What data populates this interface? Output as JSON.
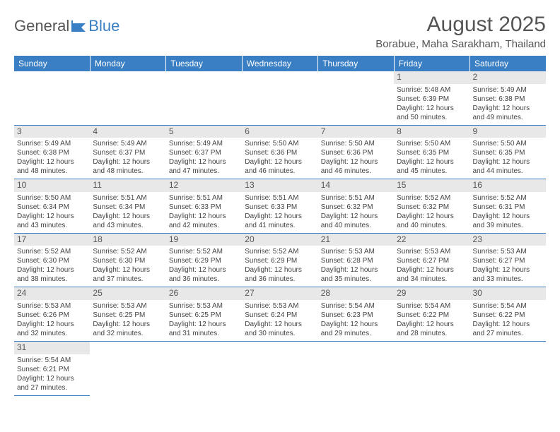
{
  "logo": {
    "text1": "General",
    "text2": "Blue"
  },
  "title": "August 2025",
  "location": "Borabue, Maha Sarakham, Thailand",
  "weekdays": [
    "Sunday",
    "Monday",
    "Tuesday",
    "Wednesday",
    "Thursday",
    "Friday",
    "Saturday"
  ],
  "header_bg": "#3a7fc4",
  "grid": [
    [
      null,
      null,
      null,
      null,
      null,
      {
        "n": "1",
        "sr": "Sunrise: 5:48 AM",
        "ss": "Sunset: 6:39 PM",
        "d1": "Daylight: 12 hours",
        "d2": "and 50 minutes."
      },
      {
        "n": "2",
        "sr": "Sunrise: 5:49 AM",
        "ss": "Sunset: 6:38 PM",
        "d1": "Daylight: 12 hours",
        "d2": "and 49 minutes."
      }
    ],
    [
      {
        "n": "3",
        "sr": "Sunrise: 5:49 AM",
        "ss": "Sunset: 6:38 PM",
        "d1": "Daylight: 12 hours",
        "d2": "and 48 minutes."
      },
      {
        "n": "4",
        "sr": "Sunrise: 5:49 AM",
        "ss": "Sunset: 6:37 PM",
        "d1": "Daylight: 12 hours",
        "d2": "and 48 minutes."
      },
      {
        "n": "5",
        "sr": "Sunrise: 5:49 AM",
        "ss": "Sunset: 6:37 PM",
        "d1": "Daylight: 12 hours",
        "d2": "and 47 minutes."
      },
      {
        "n": "6",
        "sr": "Sunrise: 5:50 AM",
        "ss": "Sunset: 6:36 PM",
        "d1": "Daylight: 12 hours",
        "d2": "and 46 minutes."
      },
      {
        "n": "7",
        "sr": "Sunrise: 5:50 AM",
        "ss": "Sunset: 6:36 PM",
        "d1": "Daylight: 12 hours",
        "d2": "and 46 minutes."
      },
      {
        "n": "8",
        "sr": "Sunrise: 5:50 AM",
        "ss": "Sunset: 6:35 PM",
        "d1": "Daylight: 12 hours",
        "d2": "and 45 minutes."
      },
      {
        "n": "9",
        "sr": "Sunrise: 5:50 AM",
        "ss": "Sunset: 6:35 PM",
        "d1": "Daylight: 12 hours",
        "d2": "and 44 minutes."
      }
    ],
    [
      {
        "n": "10",
        "sr": "Sunrise: 5:50 AM",
        "ss": "Sunset: 6:34 PM",
        "d1": "Daylight: 12 hours",
        "d2": "and 43 minutes."
      },
      {
        "n": "11",
        "sr": "Sunrise: 5:51 AM",
        "ss": "Sunset: 6:34 PM",
        "d1": "Daylight: 12 hours",
        "d2": "and 43 minutes."
      },
      {
        "n": "12",
        "sr": "Sunrise: 5:51 AM",
        "ss": "Sunset: 6:33 PM",
        "d1": "Daylight: 12 hours",
        "d2": "and 42 minutes."
      },
      {
        "n": "13",
        "sr": "Sunrise: 5:51 AM",
        "ss": "Sunset: 6:33 PM",
        "d1": "Daylight: 12 hours",
        "d2": "and 41 minutes."
      },
      {
        "n": "14",
        "sr": "Sunrise: 5:51 AM",
        "ss": "Sunset: 6:32 PM",
        "d1": "Daylight: 12 hours",
        "d2": "and 40 minutes."
      },
      {
        "n": "15",
        "sr": "Sunrise: 5:52 AM",
        "ss": "Sunset: 6:32 PM",
        "d1": "Daylight: 12 hours",
        "d2": "and 40 minutes."
      },
      {
        "n": "16",
        "sr": "Sunrise: 5:52 AM",
        "ss": "Sunset: 6:31 PM",
        "d1": "Daylight: 12 hours",
        "d2": "and 39 minutes."
      }
    ],
    [
      {
        "n": "17",
        "sr": "Sunrise: 5:52 AM",
        "ss": "Sunset: 6:30 PM",
        "d1": "Daylight: 12 hours",
        "d2": "and 38 minutes."
      },
      {
        "n": "18",
        "sr": "Sunrise: 5:52 AM",
        "ss": "Sunset: 6:30 PM",
        "d1": "Daylight: 12 hours",
        "d2": "and 37 minutes."
      },
      {
        "n": "19",
        "sr": "Sunrise: 5:52 AM",
        "ss": "Sunset: 6:29 PM",
        "d1": "Daylight: 12 hours",
        "d2": "and 36 minutes."
      },
      {
        "n": "20",
        "sr": "Sunrise: 5:52 AM",
        "ss": "Sunset: 6:29 PM",
        "d1": "Daylight: 12 hours",
        "d2": "and 36 minutes."
      },
      {
        "n": "21",
        "sr": "Sunrise: 5:53 AM",
        "ss": "Sunset: 6:28 PM",
        "d1": "Daylight: 12 hours",
        "d2": "and 35 minutes."
      },
      {
        "n": "22",
        "sr": "Sunrise: 5:53 AM",
        "ss": "Sunset: 6:27 PM",
        "d1": "Daylight: 12 hours",
        "d2": "and 34 minutes."
      },
      {
        "n": "23",
        "sr": "Sunrise: 5:53 AM",
        "ss": "Sunset: 6:27 PM",
        "d1": "Daylight: 12 hours",
        "d2": "and 33 minutes."
      }
    ],
    [
      {
        "n": "24",
        "sr": "Sunrise: 5:53 AM",
        "ss": "Sunset: 6:26 PM",
        "d1": "Daylight: 12 hours",
        "d2": "and 32 minutes."
      },
      {
        "n": "25",
        "sr": "Sunrise: 5:53 AM",
        "ss": "Sunset: 6:25 PM",
        "d1": "Daylight: 12 hours",
        "d2": "and 32 minutes."
      },
      {
        "n": "26",
        "sr": "Sunrise: 5:53 AM",
        "ss": "Sunset: 6:25 PM",
        "d1": "Daylight: 12 hours",
        "d2": "and 31 minutes."
      },
      {
        "n": "27",
        "sr": "Sunrise: 5:53 AM",
        "ss": "Sunset: 6:24 PM",
        "d1": "Daylight: 12 hours",
        "d2": "and 30 minutes."
      },
      {
        "n": "28",
        "sr": "Sunrise: 5:54 AM",
        "ss": "Sunset: 6:23 PM",
        "d1": "Daylight: 12 hours",
        "d2": "and 29 minutes."
      },
      {
        "n": "29",
        "sr": "Sunrise: 5:54 AM",
        "ss": "Sunset: 6:22 PM",
        "d1": "Daylight: 12 hours",
        "d2": "and 28 minutes."
      },
      {
        "n": "30",
        "sr": "Sunrise: 5:54 AM",
        "ss": "Sunset: 6:22 PM",
        "d1": "Daylight: 12 hours",
        "d2": "and 27 minutes."
      }
    ],
    [
      {
        "n": "31",
        "sr": "Sunrise: 5:54 AM",
        "ss": "Sunset: 6:21 PM",
        "d1": "Daylight: 12 hours",
        "d2": "and 27 minutes."
      },
      null,
      null,
      null,
      null,
      null,
      null
    ]
  ]
}
